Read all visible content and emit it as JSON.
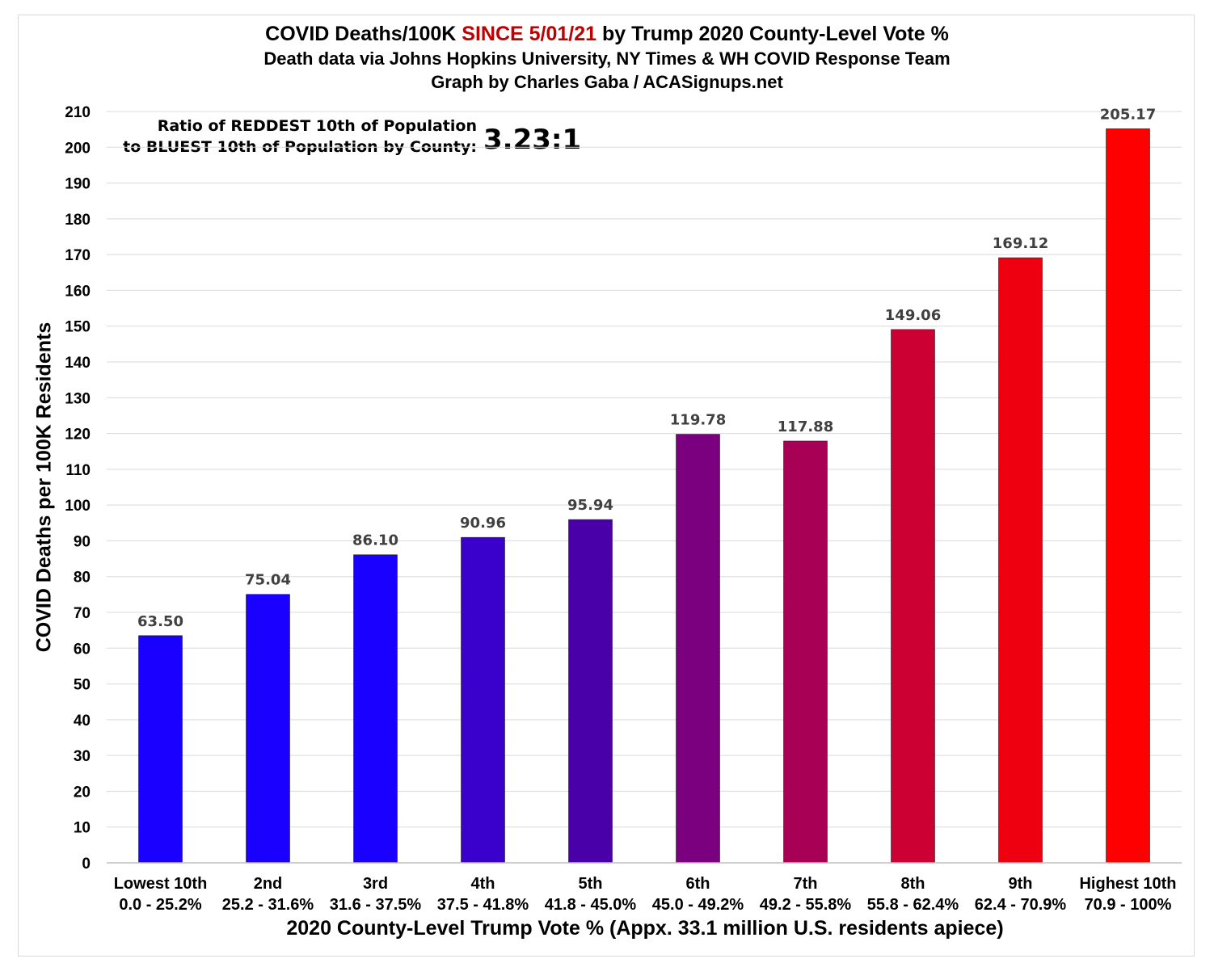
{
  "chart_data": {
    "type": "bar",
    "title_part1": "COVID Deaths/100K ",
    "title_highlight": "SINCE 5/01/21",
    "title_part2": " by Trump 2020 County-Level Vote %",
    "subtitle_1": "Death data via Johns Hopkins University, NY Times & WH COVID Response Team",
    "subtitle_2": "Graph by Charles Gaba / ACASignups.net",
    "ylabel": "COVID Deaths per 100K Residents",
    "xlabel": "2020 County-Level Trump Vote % (Appx. 33.1 million U.S. residents apiece)",
    "ylim": [
      0,
      210
    ],
    "yticks": [
      0,
      10,
      20,
      30,
      40,
      50,
      60,
      70,
      80,
      90,
      100,
      110,
      120,
      130,
      140,
      150,
      160,
      170,
      180,
      190,
      200,
      210
    ],
    "grid": true,
    "categories": [
      "Lowest 10th",
      "2nd",
      "3rd",
      "4th",
      "5th",
      "6th",
      "7th",
      "8th",
      "9th",
      "Highest 10th"
    ],
    "category_ranges": [
      "0.0 - 25.2%",
      "25.2 - 31.6%",
      "31.6 - 37.5%",
      "37.5 - 41.8%",
      "41.8 - 45.0%",
      "45.0 - 49.2%",
      "49.2 - 55.8%",
      "55.8 - 62.4%",
      "62.4 - 70.9%",
      "70.9 - 100%"
    ],
    "values": [
      63.5,
      75.04,
      86.1,
      90.96,
      95.94,
      119.78,
      117.88,
      149.06,
      169.12,
      205.17
    ],
    "value_labels": [
      "63.50",
      "75.04",
      "86.10",
      "90.96",
      "95.94",
      "119.78",
      "117.88",
      "149.06",
      "169.12",
      "205.17"
    ],
    "bar_colors": [
      "#1a00ff",
      "#1a00ff",
      "#1a00ff",
      "#3a00cc",
      "#4a00a8",
      "#7a0080",
      "#a80055",
      "#cc0033",
      "#ee0010",
      "#ff0000"
    ],
    "annotation_line1": "Ratio of REDDEST 10th of Population",
    "annotation_line2": "to BLUEST 10th of Population by County:",
    "annotation_value": "3.23:1"
  },
  "colors": {
    "highlight": "#c00000",
    "grid": "#d9d9d9",
    "value_label": "#404040"
  }
}
